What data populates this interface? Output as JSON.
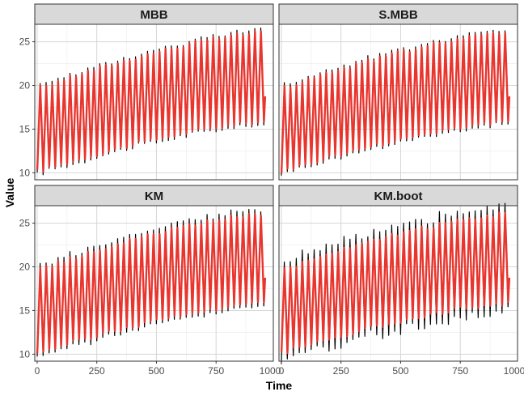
{
  "chart_data": {
    "type": "line",
    "xlabel": "Time",
    "ylabel": "Value",
    "xlim": [
      -10,
      990
    ],
    "ylim": [
      9.2,
      27
    ],
    "x_ticks": [
      0,
      250,
      500,
      750,
      1000
    ],
    "x_tick_labels": [
      "0",
      "250",
      "500",
      "750",
      "1000"
    ],
    "y_ticks": [
      10,
      15,
      20,
      25
    ],
    "y_tick_labels": [
      "10",
      "15",
      "20",
      "25"
    ],
    "grid": true,
    "legend": "none",
    "series_colors": {
      "original": "#000000",
      "bootstrap": "#e8352e"
    },
    "signal": {
      "x_range": [
        0,
        950
      ],
      "period": 25,
      "trough_start": 10,
      "trough_end": 15.7,
      "peak_start": 19.8,
      "peak_end": 26.2,
      "final_value": 18.6
    },
    "panels": [
      {
        "title": "MBB",
        "black_extra": 0.2
      },
      {
        "title": "S.MBB",
        "black_extra": 0.2
      },
      {
        "title": "KM",
        "black_extra": 0.4
      },
      {
        "title": "KM.boot",
        "black_extra": 0.9
      }
    ]
  }
}
